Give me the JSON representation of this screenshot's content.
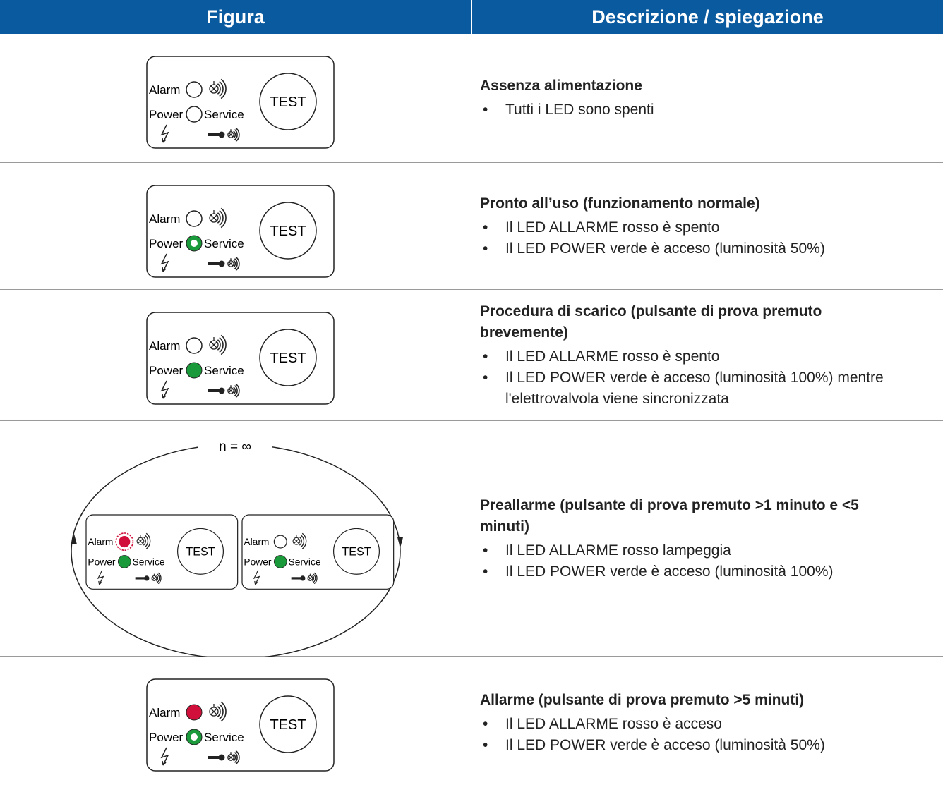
{
  "header": {
    "col1": "Figura",
    "col2": "Descrizione / spiegazione"
  },
  "panel": {
    "alarm": "Alarm",
    "power": "Power",
    "service": "Service",
    "test": "TEST"
  },
  "loop_label": "n = ∞",
  "rows": [
    {
      "title": "Assenza alimentazione",
      "bullets": [
        "Tutti i LED sono spenti"
      ]
    },
    {
      "title": "Pronto all’uso (funzionamento normale)",
      "bullets": [
        "Il LED ALLARME rosso è spento",
        "Il LED POWER verde è acceso (luminosità 50%)"
      ]
    },
    {
      "title": "Procedura di scarico (pulsante di prova premuto brevemente)",
      "bullets": [
        "Il LED ALLARME rosso è spento",
        "Il LED POWER verde è acceso (luminosità 100%) mentre l'elettrovalvola viene sincronizzata"
      ]
    },
    {
      "title": "Preallarme (pulsante di prova premuto >1 minuto e <5 minuti)",
      "bullets": [
        "Il LED ALLARME rosso lampeggia",
        "Il LED POWER verde è acceso (luminosità 100%)"
      ]
    },
    {
      "title": "Allarme (pulsante di prova premuto >5 minuti)",
      "bullets": [
        "Il LED ALLARME rosso è acceso",
        "Il LED POWER verde è acceso (luminosità 50%)"
      ]
    }
  ]
}
